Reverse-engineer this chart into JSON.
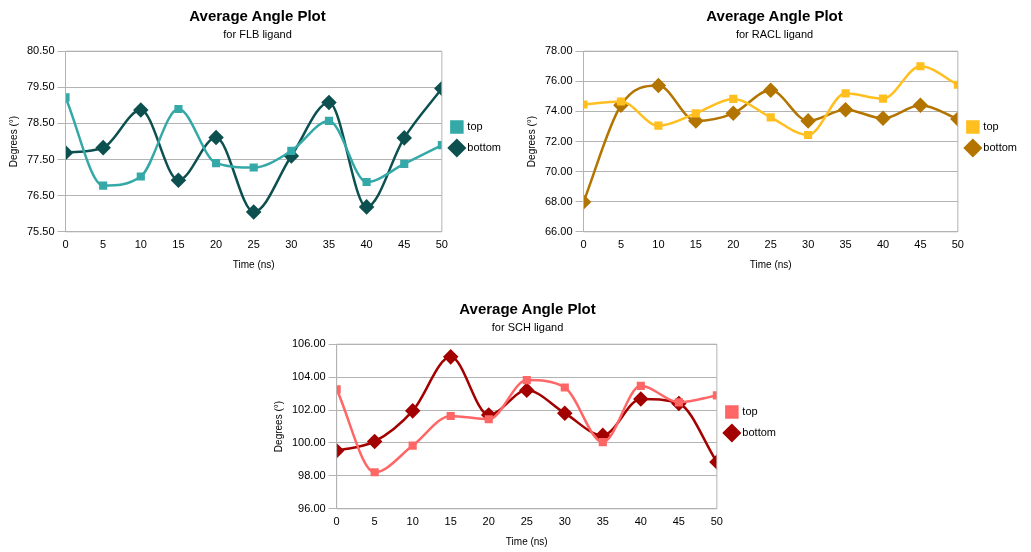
{
  "chart_data": [
    {
      "type": "line",
      "title": "Average Angle Plot",
      "subtitle": "for FLB ligand",
      "xlabel": "Time (ns)",
      "ylabel": "Degrees (°)",
      "x": [
        0,
        5,
        10,
        15,
        20,
        25,
        30,
        35,
        40,
        45,
        50
      ],
      "series": [
        {
          "name": "top",
          "color": "#35a8a8",
          "marker": "square",
          "values": [
            79.22,
            76.78,
            77.03,
            78.9,
            77.4,
            77.28,
            77.74,
            78.57,
            76.88,
            77.38,
            77.9
          ]
        },
        {
          "name": "bottom",
          "color": "#0d5050",
          "marker": "diamond",
          "values": [
            77.69,
            77.83,
            78.87,
            76.93,
            78.11,
            76.05,
            77.6,
            79.08,
            76.19,
            78.1,
            79.47
          ]
        }
      ],
      "xlim": [
        0,
        50
      ],
      "xticks": [
        0,
        5,
        10,
        15,
        20,
        25,
        30,
        35,
        40,
        45,
        50
      ],
      "ylim": [
        75.5,
        80.5
      ],
      "yticks": [
        {
          "value": 75.5,
          "label": "75.50"
        },
        {
          "value": 76.5,
          "label": "76.50"
        },
        {
          "value": 77.5,
          "label": "77.50"
        },
        {
          "value": 78.5,
          "label": "78.50"
        },
        {
          "value": 79.5,
          "label": "79.50"
        },
        {
          "value": 80.5,
          "label": "80.50"
        }
      ],
      "grid": "y",
      "legend": "right",
      "line_style": "solid"
    },
    {
      "type": "line",
      "title": "Average Angle Plot",
      "subtitle": "for RACL ligand",
      "xlabel": "Time (ns)",
      "ylabel": "Degrees (°)",
      "x": [
        0,
        5,
        10,
        15,
        20,
        25,
        30,
        35,
        40,
        45,
        50
      ],
      "series": [
        {
          "name": "top",
          "color": "#ffbf1f",
          "marker": "square",
          "values": [
            74.46,
            74.66,
            73.05,
            73.87,
            74.83,
            73.6,
            72.43,
            75.2,
            74.85,
            77.0,
            75.77
          ]
        },
        {
          "name": "bottom",
          "color": "#b37400",
          "marker": "diamond",
          "values": [
            67.98,
            74.41,
            75.72,
            73.37,
            73.87,
            75.4,
            73.37,
            74.11,
            73.54,
            74.41,
            73.5
          ]
        }
      ],
      "xlim": [
        0,
        50
      ],
      "xticks": [
        0,
        5,
        10,
        15,
        20,
        25,
        30,
        35,
        40,
        45,
        50
      ],
      "ylim": [
        66,
        78
      ],
      "yticks": [
        {
          "value": 66,
          "label": "66.00"
        },
        {
          "value": 68,
          "label": "68.00"
        },
        {
          "value": 70,
          "label": "70.00"
        },
        {
          "value": 72,
          "label": "72.00"
        },
        {
          "value": 74,
          "label": "74.00"
        },
        {
          "value": 76,
          "label": "76.00"
        },
        {
          "value": 78,
          "label": "78.00"
        }
      ],
      "grid": "y",
      "legend": "right",
      "line_style": "solid"
    },
    {
      "type": "line",
      "title": "Average Angle Plot",
      "subtitle": "for SCH ligand",
      "xlabel": "Time (ns)",
      "ylabel": "Degrees (°)",
      "x": [
        0,
        5,
        10,
        15,
        20,
        25,
        30,
        35,
        40,
        45,
        50
      ],
      "series": [
        {
          "name": "top",
          "color": "#ff6666",
          "marker": "square",
          "values": [
            103.26,
            98.22,
            99.84,
            101.64,
            101.44,
            103.82,
            103.37,
            100.05,
            103.47,
            102.47,
            102.89
          ]
        },
        {
          "name": "bottom",
          "color": "#a30000",
          "marker": "diamond",
          "values": [
            99.53,
            100.09,
            101.95,
            105.23,
            101.7,
            103.2,
            101.81,
            100.46,
            102.67,
            102.4,
            98.84
          ]
        }
      ],
      "xlim": [
        0,
        50
      ],
      "xticks": [
        0,
        5,
        10,
        15,
        20,
        25,
        30,
        35,
        40,
        45,
        50
      ],
      "ylim": [
        96,
        106
      ],
      "yticks": [
        {
          "value": 96,
          "label": "96.00"
        },
        {
          "value": 98,
          "label": "98.00"
        },
        {
          "value": 100,
          "label": "100.00"
        },
        {
          "value": 102,
          "label": "102.00"
        },
        {
          "value": 104,
          "label": "104.00"
        },
        {
          "value": 106,
          "label": "106.00"
        }
      ],
      "grid": "y",
      "legend": "right",
      "line_style": "solid"
    }
  ]
}
